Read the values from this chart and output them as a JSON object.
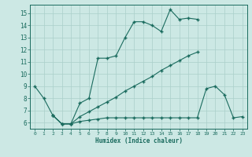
{
  "xlabel": "Humidex (Indice chaleur)",
  "xlim": [
    -0.5,
    23.5
  ],
  "ylim": [
    5.5,
    15.7
  ],
  "yticks": [
    6,
    7,
    8,
    9,
    10,
    11,
    12,
    13,
    14,
    15
  ],
  "xticks": [
    0,
    1,
    2,
    3,
    4,
    5,
    6,
    7,
    8,
    9,
    10,
    11,
    12,
    13,
    14,
    15,
    16,
    17,
    18,
    19,
    20,
    21,
    22,
    23
  ],
  "bg_color": "#cce8e4",
  "line_color": "#1a6b5e",
  "grid_color": "#aacfca",
  "line1_x": [
    0,
    1,
    2,
    3,
    4,
    5,
    6,
    7,
    8,
    9,
    10,
    11,
    12,
    13,
    14,
    15,
    16,
    17,
    18
  ],
  "line1_y": [
    9.0,
    8.0,
    6.6,
    5.9,
    5.9,
    7.6,
    8.0,
    11.3,
    11.3,
    11.5,
    13.0,
    14.3,
    14.3,
    14.0,
    13.5,
    15.3,
    14.5,
    14.6,
    14.5
  ],
  "line2_x": [
    2,
    3,
    4,
    5,
    6,
    7,
    8,
    9,
    10,
    11,
    12,
    13,
    14,
    15,
    16,
    17,
    18
  ],
  "line2_y": [
    6.6,
    5.9,
    5.9,
    6.5,
    6.9,
    7.3,
    7.7,
    8.1,
    8.6,
    9.0,
    9.4,
    9.8,
    10.3,
    10.7,
    11.1,
    11.5,
    11.8
  ],
  "line3_x": [
    2,
    3,
    4,
    5,
    6,
    7,
    8,
    9,
    10,
    11,
    12,
    13,
    14,
    15,
    16,
    17,
    18,
    19,
    20,
    21,
    22,
    23
  ],
  "line3_y": [
    6.6,
    5.9,
    5.9,
    6.1,
    6.2,
    6.3,
    6.4,
    6.4,
    6.4,
    6.4,
    6.4,
    6.4,
    6.4,
    6.4,
    6.4,
    6.4,
    6.4,
    8.8,
    9.0,
    8.3,
    6.4,
    6.5
  ]
}
